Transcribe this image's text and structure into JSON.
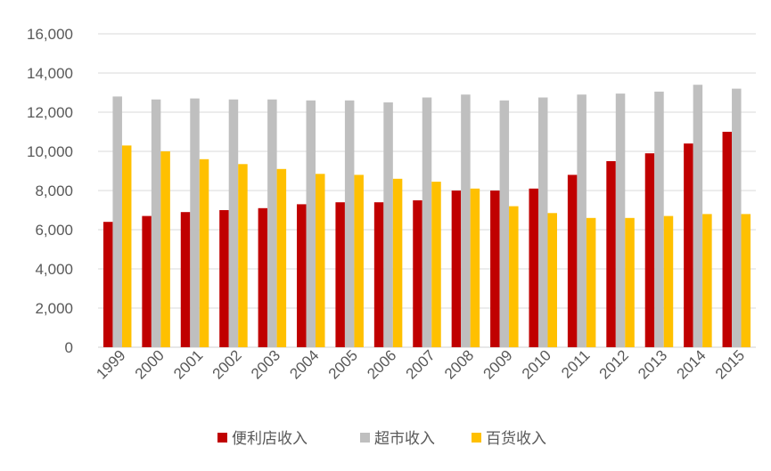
{
  "chart_data": {
    "type": "bar",
    "categories": [
      "1999",
      "2000",
      "2001",
      "2002",
      "2003",
      "2004",
      "2005",
      "2006",
      "2007",
      "2008",
      "2009",
      "2010",
      "2011",
      "2012",
      "2013",
      "2014",
      "2015"
    ],
    "series": [
      {
        "name": "便利店收入",
        "color": "#c00000",
        "values": [
          6400,
          6700,
          6900,
          7000,
          7100,
          7300,
          7400,
          7400,
          7500,
          8000,
          8000,
          8100,
          8800,
          9500,
          9900,
          10400,
          11000
        ]
      },
      {
        "name": "超市收入",
        "color": "#bfbfbf",
        "values": [
          12800,
          12650,
          12700,
          12650,
          12650,
          12600,
          12600,
          12500,
          12750,
          12900,
          12600,
          12750,
          12900,
          12950,
          13050,
          13400,
          13200
        ]
      },
      {
        "name": "百货收入",
        "color": "#ffc000",
        "values": [
          10300,
          10000,
          9600,
          9350,
          9100,
          8850,
          8800,
          8600,
          8450,
          8100,
          7200,
          6850,
          6600,
          6600,
          6700,
          6800,
          6800
        ]
      }
    ],
    "ylim": [
      0,
      16000
    ],
    "yticks": [
      "0",
      "2,000",
      "4,000",
      "6,000",
      "8,000",
      "10,000",
      "12,000",
      "14,000",
      "16,000"
    ],
    "grid": true,
    "legend_position": "bottom"
  }
}
